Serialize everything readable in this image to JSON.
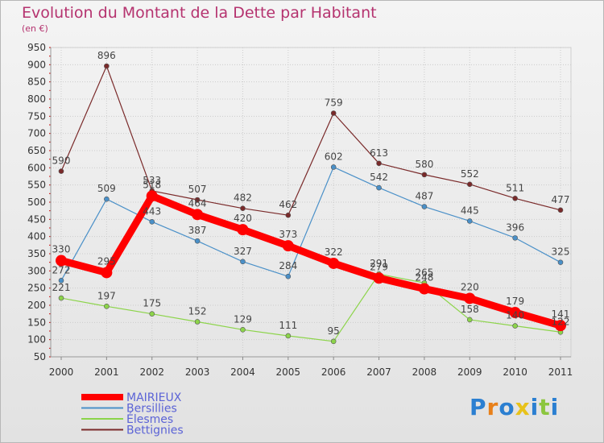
{
  "title": "Evolution du Montant de la Dette par Habitant",
  "subtitle": "(en €)",
  "logo_text": "Proxiti",
  "chart_data": {
    "type": "line",
    "title": "Evolution du Montant de la Dette par Habitant",
    "subtitle": "(en €)",
    "xlabel": "",
    "ylabel": "",
    "ylim": [
      50,
      950
    ],
    "yticks": [
      50,
      100,
      150,
      200,
      250,
      300,
      350,
      400,
      450,
      500,
      550,
      600,
      650,
      700,
      750,
      800,
      850,
      900,
      950
    ],
    "grid": true,
    "legend_position": "bottom-left",
    "categories": [
      "2000",
      "2001",
      "2002",
      "2003",
      "2004",
      "2005",
      "2006",
      "2007",
      "2008",
      "2009",
      "2010",
      "2011"
    ],
    "series": [
      {
        "name": "MAIRIEUX",
        "color": "#ff0000",
        "values": [
          330,
          295,
          518,
          464,
          420,
          373,
          322,
          279,
          248,
          220,
          179,
          141
        ],
        "labels": [
          "330",
          "295",
          "518",
          "464",
          "420",
          "373",
          "322",
          "279",
          "248",
          "220",
          "179",
          "141"
        ]
      },
      {
        "name": "Bersillies",
        "color": "#4a90c8",
        "values": [
          272,
          509,
          443,
          387,
          327,
          284,
          602,
          542,
          487,
          445,
          396,
          325
        ],
        "labels": [
          "272",
          "509",
          "443",
          "387",
          "327",
          "284",
          "602",
          "542",
          "487",
          "445",
          "396",
          "325"
        ]
      },
      {
        "name": "Élesmes",
        "color": "#8cd44a",
        "values": [
          221,
          197,
          175,
          152,
          129,
          111,
          95,
          291,
          265,
          158,
          140,
          122
        ],
        "labels": [
          "221",
          "197",
          "175",
          "152",
          "129",
          "111",
          "95",
          "291",
          "265",
          "158",
          "140",
          "122"
        ]
      },
      {
        "name": "Bettignies",
        "color": "#7a2a2a",
        "values": [
          590,
          896,
          533,
          507,
          482,
          462,
          759,
          613,
          580,
          552,
          511,
          477
        ],
        "labels": [
          "590",
          "896",
          "533",
          "507",
          "482",
          "462",
          "759",
          "613",
          "580",
          "552",
          "511",
          "477"
        ]
      }
    ]
  }
}
